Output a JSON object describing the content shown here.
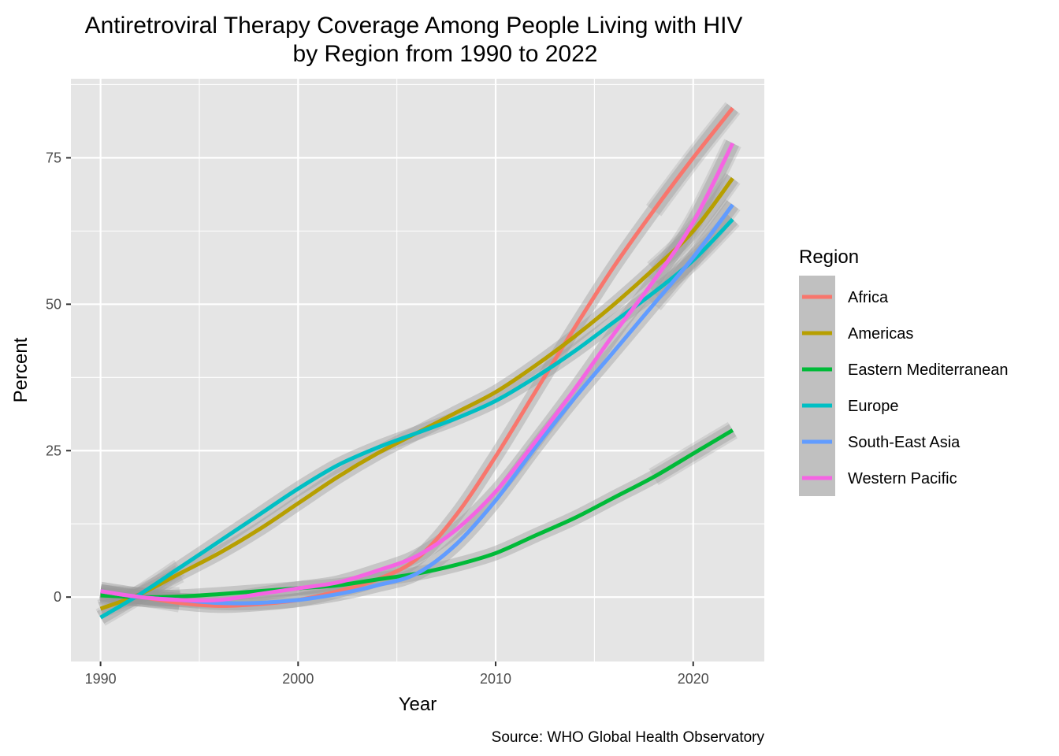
{
  "chart_data": {
    "type": "line",
    "title_line1": "Antiretroviral Therapy Coverage Among People Living with HIV",
    "title_line2": "by Region from 1990 to 2022",
    "xlabel": "Year",
    "ylabel": "Percent",
    "caption": "Source: WHO Global Health Observatory",
    "legend_title": "Region",
    "legend_position": "right",
    "xlim": [
      1988.5,
      2023.6
    ],
    "ylim": [
      -11,
      88.5
    ],
    "x_ticks": [
      1990,
      2000,
      2010,
      2020
    ],
    "y_ticks": [
      0,
      25,
      50,
      75
    ],
    "panel_background": "#e5e5e5",
    "band_color": "#999999",
    "grid": true,
    "x": [
      1990,
      1992,
      1994,
      1996,
      1998,
      2000,
      2002,
      2004,
      2006,
      2008,
      2010,
      2012,
      2014,
      2016,
      2018,
      2020,
      2022
    ],
    "series": [
      {
        "name": "Africa",
        "color": "#F8766D",
        "values": [
          0.5,
          0,
          -1.0,
          -1.5,
          -1.2,
          -0.5,
          1.0,
          3.0,
          6.5,
          14.0,
          24.0,
          35.0,
          46.0,
          56.5,
          66.0,
          75.0,
          83.5
        ]
      },
      {
        "name": "Americas",
        "color": "#B79F00",
        "values": [
          -2.0,
          0.5,
          4.0,
          7.5,
          11.5,
          16.0,
          20.5,
          24.5,
          28.0,
          31.5,
          35.0,
          39.5,
          44.5,
          50.0,
          56.0,
          62.5,
          71.5
        ]
      },
      {
        "name": "Eastern Mediterranean",
        "color": "#00BA38",
        "values": [
          0.3,
          0.0,
          0.1,
          0.5,
          1.0,
          1.5,
          2.0,
          3.0,
          4.0,
          5.5,
          7.5,
          10.5,
          13.5,
          17.0,
          20.5,
          24.5,
          28.5
        ]
      },
      {
        "name": "Europe",
        "color": "#00BFC4",
        "values": [
          -3.5,
          0.5,
          5.0,
          9.5,
          14.0,
          18.5,
          22.5,
          25.5,
          28.0,
          30.5,
          33.5,
          37.5,
          42.0,
          47.0,
          52.0,
          57.5,
          64.5
        ]
      },
      {
        "name": "South-East Asia",
        "color": "#619CFF",
        "values": [
          1.0,
          0,
          -0.5,
          -1.0,
          -1.0,
          -0.5,
          0.5,
          2.0,
          4.0,
          9.0,
          16.5,
          25.5,
          34.0,
          42.0,
          50.0,
          58.0,
          67.0
        ]
      },
      {
        "name": "Western Pacific",
        "color": "#F564E3",
        "values": [
          1.0,
          0,
          -0.5,
          -0.5,
          0.5,
          1.5,
          2.5,
          4.5,
          7.0,
          11.5,
          18.0,
          26.5,
          35.5,
          45.0,
          54.0,
          64.0,
          77.5
        ]
      }
    ]
  }
}
